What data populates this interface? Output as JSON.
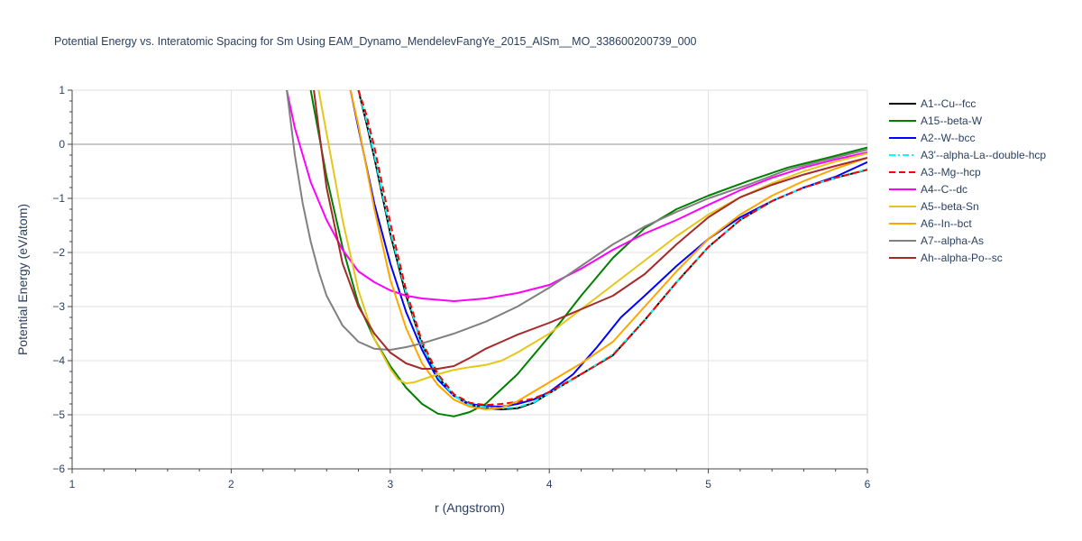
{
  "chart_data": {
    "type": "line",
    "title": "Potential Energy vs. Interatomic Spacing for Sm Using EAM_Dynamo_MendelevFangYe_2015_AlSm__MO_338600200739_000",
    "xlabel": "r (Angstrom)",
    "ylabel": "Potential Energy (eV/atom)",
    "xlim": [
      1,
      6
    ],
    "ylim": [
      -6,
      1
    ],
    "x_ticks": [
      1,
      2,
      3,
      4,
      5,
      6
    ],
    "x_tick_labels": [
      "1",
      "2",
      "3",
      "4",
      "5",
      "6"
    ],
    "y_ticks": [
      -6,
      -5,
      -4,
      -3,
      -2,
      -1,
      0,
      1
    ],
    "y_tick_labels": [
      "−6",
      "−5",
      "−4",
      "−3",
      "−2",
      "−1",
      "0",
      "1"
    ],
    "grid": true,
    "legend_position": "right",
    "series": [
      {
        "name": "A1--Cu--fcc",
        "color": "#000000",
        "dash": "solid",
        "x": [
          2.8,
          2.85,
          2.9,
          3.0,
          3.1,
          3.2,
          3.3,
          3.4,
          3.5,
          3.6,
          3.7,
          3.8,
          3.9,
          4.0,
          4.2,
          4.4,
          4.6,
          4.8,
          5.0,
          5.2,
          5.4,
          5.6,
          5.8,
          6.0
        ],
        "y": [
          1.0,
          0.4,
          -0.25,
          -1.65,
          -2.8,
          -3.7,
          -4.3,
          -4.65,
          -4.82,
          -4.88,
          -4.9,
          -4.88,
          -4.78,
          -4.6,
          -4.25,
          -3.9,
          -3.25,
          -2.55,
          -1.9,
          -1.4,
          -1.05,
          -0.8,
          -0.62,
          -0.47
        ]
      },
      {
        "name": "A15--beta-W",
        "color": "#008000",
        "dash": "solid",
        "x": [
          2.5,
          2.55,
          2.6,
          2.7,
          2.8,
          2.9,
          3.0,
          3.1,
          3.2,
          3.3,
          3.4,
          3.5,
          3.6,
          3.8,
          4.0,
          4.2,
          4.4,
          4.6,
          4.8,
          5.0,
          5.25,
          5.5,
          5.75,
          6.0
        ],
        "y": [
          1.0,
          0.2,
          -0.6,
          -1.9,
          -2.95,
          -3.6,
          -4.1,
          -4.5,
          -4.8,
          -4.98,
          -5.03,
          -4.95,
          -4.8,
          -4.25,
          -3.55,
          -2.8,
          -2.1,
          -1.55,
          -1.2,
          -0.95,
          -0.68,
          -0.43,
          -0.25,
          -0.06
        ]
      },
      {
        "name": "A2--W--bcc",
        "color": "#0000ff",
        "dash": "solid",
        "x": [
          2.75,
          2.8,
          2.9,
          3.0,
          3.1,
          3.2,
          3.3,
          3.4,
          3.5,
          3.6,
          3.7,
          3.8,
          3.9,
          4.0,
          4.15,
          4.3,
          4.45,
          4.6,
          4.8,
          5.0,
          5.2,
          5.4,
          5.6,
          5.8,
          6.0
        ],
        "y": [
          1.0,
          0.3,
          -1.1,
          -2.2,
          -3.1,
          -3.8,
          -4.35,
          -4.65,
          -4.8,
          -4.84,
          -4.85,
          -4.8,
          -4.72,
          -4.58,
          -4.25,
          -3.75,
          -3.2,
          -2.8,
          -2.25,
          -1.75,
          -1.35,
          -1.05,
          -0.8,
          -0.6,
          -0.33
        ]
      },
      {
        "name": "A3'--alpha-La--double-hcp",
        "color": "#00ffff",
        "dash": "dashdot",
        "x": [
          2.8,
          2.85,
          2.9,
          3.0,
          3.1,
          3.2,
          3.3,
          3.4,
          3.5,
          3.6,
          3.7,
          3.8,
          3.9,
          4.0,
          4.2,
          4.4,
          4.6,
          4.8,
          5.0,
          5.2,
          5.4,
          5.6,
          5.8,
          6.0
        ],
        "y": [
          1.0,
          0.45,
          -0.2,
          -1.6,
          -2.75,
          -3.7,
          -4.3,
          -4.65,
          -4.82,
          -4.86,
          -4.88,
          -4.86,
          -4.77,
          -4.6,
          -4.25,
          -3.88,
          -3.25,
          -2.55,
          -1.9,
          -1.4,
          -1.05,
          -0.8,
          -0.62,
          -0.46
        ]
      },
      {
        "name": "A3--Mg--hcp",
        "color": "#ff0000",
        "dash": "dash",
        "x": [
          2.8,
          2.85,
          2.9,
          3.0,
          3.1,
          3.2,
          3.3,
          3.4,
          3.5,
          3.6,
          3.7,
          3.8,
          3.9,
          4.0,
          4.2,
          4.4,
          4.6,
          4.8,
          5.0,
          5.2,
          5.4,
          5.6,
          5.8,
          6.0
        ],
        "y": [
          1.0,
          0.55,
          -0.05,
          -1.45,
          -2.7,
          -3.65,
          -4.25,
          -4.62,
          -4.78,
          -4.82,
          -4.8,
          -4.76,
          -4.7,
          -4.58,
          -4.25,
          -3.9,
          -3.25,
          -2.55,
          -1.9,
          -1.4,
          -1.05,
          -0.8,
          -0.62,
          -0.47
        ]
      },
      {
        "name": "A4--C--dc",
        "color": "#ff00ff",
        "dash": "solid",
        "x": [
          2.35,
          2.4,
          2.5,
          2.6,
          2.7,
          2.8,
          2.9,
          3.0,
          3.1,
          3.2,
          3.4,
          3.6,
          3.8,
          4.0,
          4.2,
          4.4,
          4.6,
          4.8,
          5.0,
          5.2,
          5.4,
          5.6,
          5.8,
          6.0
        ],
        "y": [
          1.0,
          0.3,
          -0.7,
          -1.4,
          -1.95,
          -2.35,
          -2.55,
          -2.7,
          -2.8,
          -2.85,
          -2.9,
          -2.85,
          -2.75,
          -2.6,
          -2.3,
          -1.95,
          -1.65,
          -1.4,
          -1.12,
          -0.85,
          -0.62,
          -0.43,
          -0.28,
          -0.15
        ]
      },
      {
        "name": "A5--beta-Sn",
        "color": "#e6c619",
        "dash": "solid",
        "x": [
          2.55,
          2.6,
          2.7,
          2.8,
          2.9,
          3.0,
          3.05,
          3.1,
          3.15,
          3.2,
          3.3,
          3.4,
          3.5,
          3.6,
          3.7,
          3.8,
          4.0,
          4.2,
          4.4,
          4.6,
          4.8,
          5.0,
          5.2,
          5.4,
          5.6,
          5.8,
          6.0
        ],
        "y": [
          1.0,
          0.2,
          -1.4,
          -2.7,
          -3.6,
          -4.15,
          -4.35,
          -4.42,
          -4.4,
          -4.35,
          -4.25,
          -4.17,
          -4.12,
          -4.08,
          -4.0,
          -3.85,
          -3.5,
          -3.05,
          -2.6,
          -2.15,
          -1.7,
          -1.3,
          -0.98,
          -0.72,
          -0.5,
          -0.32,
          -0.17
        ]
      },
      {
        "name": "A6--In--bct",
        "color": "#ffa500",
        "dash": "solid",
        "x": [
          2.75,
          2.8,
          2.9,
          3.0,
          3.1,
          3.2,
          3.3,
          3.4,
          3.5,
          3.6,
          3.7,
          3.8,
          4.0,
          4.2,
          4.4,
          4.6,
          4.8,
          5.0,
          5.2,
          5.4,
          5.6,
          5.8,
          6.0
        ],
        "y": [
          1.0,
          0.35,
          -1.2,
          -2.5,
          -3.4,
          -4.05,
          -4.45,
          -4.72,
          -4.85,
          -4.9,
          -4.87,
          -4.75,
          -4.4,
          -4.05,
          -3.65,
          -3.0,
          -2.35,
          -1.75,
          -1.3,
          -0.95,
          -0.68,
          -0.45,
          -0.25
        ]
      },
      {
        "name": "A7--alpha-As",
        "color": "#808080",
        "dash": "solid",
        "x": [
          2.35,
          2.4,
          2.45,
          2.5,
          2.55,
          2.6,
          2.7,
          2.8,
          2.9,
          3.0,
          3.1,
          3.2,
          3.4,
          3.6,
          3.8,
          4.0,
          4.2,
          4.4,
          4.6,
          4.8,
          5.0,
          5.25,
          5.5,
          5.75,
          6.0
        ],
        "y": [
          1.0,
          -0.2,
          -1.1,
          -1.8,
          -2.35,
          -2.8,
          -3.35,
          -3.65,
          -3.78,
          -3.8,
          -3.75,
          -3.68,
          -3.5,
          -3.28,
          -3.0,
          -2.65,
          -2.25,
          -1.85,
          -1.52,
          -1.25,
          -1.0,
          -0.75,
          -0.47,
          -0.28,
          -0.1
        ]
      },
      {
        "name": "Ah--alpha-Po--sc",
        "color": "#a52a2a",
        "dash": "solid",
        "x": [
          2.52,
          2.55,
          2.6,
          2.7,
          2.8,
          2.9,
          3.0,
          3.1,
          3.2,
          3.3,
          3.4,
          3.5,
          3.6,
          3.7,
          3.8,
          4.0,
          4.2,
          4.4,
          4.6,
          4.8,
          5.0,
          5.2,
          5.4,
          5.6,
          5.8,
          6.0
        ],
        "y": [
          1.0,
          0.3,
          -0.8,
          -2.2,
          -3.0,
          -3.5,
          -3.85,
          -4.05,
          -4.15,
          -4.15,
          -4.1,
          -3.95,
          -3.78,
          -3.65,
          -3.52,
          -3.3,
          -3.05,
          -2.8,
          -2.4,
          -1.85,
          -1.35,
          -0.98,
          -0.75,
          -0.56,
          -0.4,
          -0.25
        ]
      }
    ]
  }
}
